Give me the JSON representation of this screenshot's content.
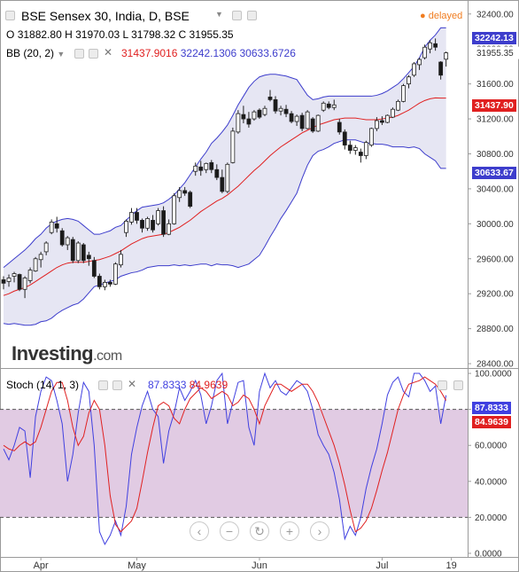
{
  "header": {
    "symbol_title": "BSE Sensex 30, India, D, BSE",
    "status": "delayed",
    "ohlc": {
      "o_label": "O",
      "o": "31882.80",
      "h_label": "H",
      "h": "31970.03",
      "l_label": "L",
      "l": "31798.32",
      "c_label": "C",
      "c": "31955.35"
    },
    "bb_label": "BB (20, 2)",
    "bb_values": {
      "mid": "31437.9016",
      "upper": "32242.1306",
      "lower": "30633.6726"
    },
    "stoch_label": "Stoch (14, 1, 3)",
    "stoch_values": {
      "k": "87.8333",
      "d": "84.9639"
    }
  },
  "watermark": {
    "brand": "Investing",
    "suffix": ".com"
  },
  "price_tags": {
    "upper": "32242.13",
    "mid": "31437.90",
    "lower": "30633.67",
    "close": "31955.35"
  },
  "stoch_tags": {
    "k": "87.8333",
    "d": "84.9639"
  },
  "colors": {
    "upper_band": "#3d3dcc",
    "mid_band": "#e02020",
    "lower_band": "#3d3dcc",
    "band_fill": "#e6e6f3",
    "up_candle": "#ffffff",
    "down_candle": "#1a1a1a",
    "stoch_k": "#4040e0",
    "stoch_d": "#e02020",
    "stoch_fill": "#e1cbe3"
  },
  "icons": [
    "eye-icon",
    "gear-icon",
    "close-icon",
    "chevron-down-icon",
    "arrow-up-icon"
  ],
  "nav_icons": [
    "scroll-left-icon",
    "zoom-out-icon",
    "reset-icon",
    "zoom-in-icon",
    "scroll-right-icon"
  ],
  "chart_data": [
    {
      "type": "candlestick",
      "title": "BSE Sensex 30, India, D, BSE",
      "xlabel": "",
      "ylabel": "",
      "x_ticks": [
        "Apr",
        "May",
        "Jun",
        "Jul",
        "19"
      ],
      "y_ticks": [
        "32400.00",
        "32000.00",
        "31600.00",
        "31200.00",
        "30800.00",
        "30400.00",
        "30000.00",
        "29600.00",
        "29200.00",
        "28800.00",
        "28400.00"
      ],
      "ylim": [
        28350,
        32560
      ],
      "grid": false,
      "ohlc": [
        [
          29360,
          29400,
          29250,
          29320
        ],
        [
          29340,
          29420,
          29280,
          29380
        ],
        [
          29400,
          29450,
          29330,
          29430
        ],
        [
          29420,
          29430,
          29230,
          29250
        ],
        [
          29250,
          29400,
          29150,
          29380
        ],
        [
          29350,
          29500,
          29320,
          29470
        ],
        [
          29460,
          29620,
          29450,
          29600
        ],
        [
          29590,
          29680,
          29500,
          29650
        ],
        [
          29680,
          29800,
          29640,
          29780
        ],
        [
          29900,
          30050,
          29880,
          30020
        ],
        [
          30000,
          30080,
          29900,
          29950
        ],
        [
          29920,
          29950,
          29740,
          29760
        ],
        [
          29760,
          29860,
          29700,
          29840
        ],
        [
          29820,
          29850,
          29550,
          29580
        ],
        [
          29580,
          29800,
          29550,
          29780
        ],
        [
          29760,
          29780,
          29550,
          29580
        ],
        [
          29640,
          29680,
          29520,
          29600
        ],
        [
          29580,
          29620,
          29380,
          29400
        ],
        [
          29400,
          29430,
          29250,
          29280
        ],
        [
          29280,
          29360,
          29240,
          29330
        ],
        [
          29330,
          29360,
          29280,
          29310
        ],
        [
          29310,
          29560,
          29300,
          29540
        ],
        [
          29530,
          29700,
          29500,
          29650
        ],
        [
          29900,
          30050,
          29850,
          30030
        ],
        [
          30020,
          30180,
          29990,
          30130
        ],
        [
          30130,
          30180,
          30000,
          30040
        ],
        [
          30040,
          30060,
          29900,
          29950
        ],
        [
          29950,
          30080,
          29920,
          30060
        ],
        [
          30040,
          30100,
          29900,
          29930
        ],
        [
          30000,
          30180,
          29980,
          30150
        ],
        [
          30150,
          30200,
          29850,
          29880
        ],
        [
          29880,
          30050,
          29870,
          30000
        ],
        [
          30000,
          30350,
          29990,
          30320
        ],
        [
          30300,
          30420,
          30250,
          30380
        ],
        [
          30380,
          30420,
          30320,
          30350
        ],
        [
          30360,
          30380,
          30180,
          30200
        ],
        [
          30600,
          30700,
          30550,
          30660
        ],
        [
          30650,
          30720,
          30550,
          30610
        ],
        [
          30620,
          30700,
          30580,
          30690
        ],
        [
          30700,
          30730,
          30580,
          30620
        ],
        [
          30620,
          30680,
          30500,
          30530
        ],
        [
          30530,
          30620,
          30350,
          30370
        ],
        [
          30370,
          30700,
          30350,
          30680
        ],
        [
          30700,
          31100,
          30690,
          31060
        ],
        [
          31050,
          31300,
          31030,
          31260
        ],
        [
          31250,
          31350,
          31150,
          31200
        ],
        [
          31200,
          31280,
          31100,
          31140
        ],
        [
          31200,
          31300,
          31180,
          31280
        ],
        [
          31300,
          31320,
          31200,
          31220
        ],
        [
          31250,
          31350,
          31230,
          31320
        ],
        [
          31450,
          31530,
          31400,
          31420
        ],
        [
          31420,
          31460,
          31260,
          31290
        ],
        [
          31290,
          31350,
          31240,
          31320
        ],
        [
          31310,
          31360,
          31220,
          31260
        ],
        [
          31260,
          31290,
          31150,
          31170
        ],
        [
          31170,
          31250,
          31120,
          31230
        ],
        [
          31240,
          31270,
          31060,
          31090
        ],
        [
          31090,
          31300,
          31080,
          31280
        ],
        [
          31200,
          31220,
          31040,
          31060
        ],
        [
          31060,
          31250,
          31050,
          31240
        ],
        [
          31300,
          31400,
          31280,
          31380
        ],
        [
          31370,
          31400,
          31310,
          31330
        ],
        [
          31330,
          31420,
          31300,
          31360
        ],
        [
          31160,
          31200,
          31020,
          31050
        ],
        [
          31050,
          31080,
          30850,
          30900
        ],
        [
          30900,
          30950,
          30800,
          30840
        ],
        [
          30840,
          30900,
          30790,
          30870
        ],
        [
          30820,
          30860,
          30700,
          30780
        ],
        [
          30780,
          30950,
          30740,
          30930
        ],
        [
          30900,
          31100,
          30880,
          31090
        ],
        [
          31090,
          31220,
          31060,
          31180
        ],
        [
          31180,
          31230,
          31130,
          31160
        ],
        [
          31160,
          31250,
          31150,
          31240
        ],
        [
          31220,
          31330,
          31210,
          31310
        ],
        [
          31300,
          31420,
          31290,
          31400
        ],
        [
          31400,
          31600,
          31390,
          31580
        ],
        [
          31600,
          31700,
          31550,
          31680
        ],
        [
          31700,
          31850,
          31680,
          31830
        ],
        [
          31820,
          31900,
          31760,
          31880
        ],
        [
          31900,
          32050,
          31880,
          32020
        ],
        [
          32000,
          32100,
          31950,
          32070
        ],
        [
          32060,
          32120,
          31980,
          32020
        ],
        [
          31850,
          31860,
          31650,
          31700
        ],
        [
          31882.8,
          31970.03,
          31798.32,
          31955.35
        ]
      ],
      "bollinger": {
        "mid": [
          29180,
          29200,
          29230,
          29250,
          29270,
          29300,
          29340,
          29380,
          29420,
          29460,
          29500,
          29530,
          29550,
          29560,
          29560,
          29560,
          29570,
          29580,
          29590,
          29610,
          29630,
          29660,
          29690,
          29730,
          29770,
          29800,
          29830,
          29850,
          29860,
          29870,
          29880,
          29900,
          29930,
          29960,
          30000,
          30040,
          30090,
          30140,
          30180,
          30220,
          30260,
          30290,
          30330,
          30380,
          30430,
          30490,
          30550,
          30610,
          30660,
          30720,
          30780,
          30830,
          30880,
          30920,
          30960,
          31000,
          31040,
          31070,
          31100,
          31130,
          31150,
          31170,
          31190,
          31200,
          31210,
          31210,
          31210,
          31200,
          31190,
          31190,
          31190,
          31200,
          31210,
          31220,
          31240,
          31270,
          31300,
          31340,
          31380,
          31410,
          31430,
          31440,
          31437.9,
          31437.9
        ],
        "upper": [
          29500,
          29550,
          29600,
          29650,
          29700,
          29760,
          29830,
          29880,
          29950,
          30000,
          30030,
          30050,
          30060,
          30050,
          30030,
          29980,
          29930,
          29880,
          29880,
          29900,
          29920,
          29960,
          29980,
          30040,
          30100,
          30150,
          30190,
          30200,
          30210,
          30220,
          30240,
          30280,
          30330,
          30400,
          30470,
          30560,
          30650,
          30740,
          30820,
          30920,
          30980,
          31050,
          31130,
          31240,
          31360,
          31460,
          31560,
          31630,
          31680,
          31700,
          31710,
          31710,
          31700,
          31690,
          31670,
          31650,
          31560,
          31470,
          31420,
          31430,
          31450,
          31460,
          31460,
          31460,
          31460,
          31460,
          31460,
          31460,
          31460,
          31460,
          31470,
          31490,
          31520,
          31560,
          31600,
          31660,
          31730,
          31800,
          31900,
          32020,
          32100,
          32160,
          32242.13,
          32242.13
        ],
        "lower": [
          28860,
          28850,
          28860,
          28850,
          28840,
          28840,
          28850,
          28880,
          28890,
          28920,
          28970,
          29010,
          29040,
          29070,
          29090,
          29140,
          29210,
          29280,
          29300,
          29320,
          29340,
          29360,
          29400,
          29420,
          29440,
          29450,
          29470,
          29500,
          29510,
          29520,
          29520,
          29520,
          29530,
          29520,
          29530,
          29520,
          29530,
          29540,
          29540,
          29520,
          29540,
          29530,
          29530,
          29520,
          29500,
          29520,
          29540,
          29590,
          29640,
          29740,
          29850,
          29950,
          30060,
          30150,
          30250,
          30350,
          30520,
          30670,
          30780,
          30830,
          30850,
          30880,
          30920,
          30940,
          30960,
          30960,
          30960,
          30940,
          30920,
          30920,
          30910,
          30910,
          30900,
          30880,
          30880,
          30880,
          30870,
          30880,
          30860,
          30800,
          30760,
          30720,
          30633.67,
          30633.67
        ]
      }
    },
    {
      "type": "line",
      "title": "Stoch (14, 1, 3)",
      "xlabel": "",
      "ylabel": "",
      "y_ticks": [
        "100.0000",
        "80.0000",
        "60.0000",
        "40.0000",
        "20.0000",
        "0.0000"
      ],
      "ylim": [
        -2,
        102
      ],
      "reference_lines": [
        80,
        20
      ],
      "series": [
        {
          "name": "",
          "values": [
            58,
            52,
            60,
            70,
            68,
            42,
            76,
            90,
            98,
            96,
            85,
            72,
            40,
            55,
            78,
            95,
            90,
            60,
            12,
            5,
            10,
            18,
            10,
            26,
            55,
            70,
            82,
            90,
            80,
            76,
            50,
            68,
            78,
            92,
            85,
            90,
            96,
            88,
            72,
            82,
            96,
            100,
            72,
            84,
            95,
            96,
            70,
            60,
            90,
            100,
            92,
            96,
            90,
            88,
            92,
            96,
            94,
            90,
            80,
            66,
            60,
            55,
            45,
            30,
            8,
            15,
            10,
            20,
            36,
            48,
            58,
            72,
            88,
            95,
            98,
            90,
            87,
            100,
            100,
            96,
            90,
            93,
            72,
            87.8333
          ]
        },
        {
          "name": "",
          "values": [
            60,
            58,
            57,
            60,
            62,
            60,
            62,
            70,
            80,
            90,
            95,
            95,
            85,
            70,
            60,
            65,
            78,
            85,
            80,
            60,
            32,
            16,
            12,
            15,
            18,
            25,
            40,
            56,
            70,
            82,
            84,
            82,
            75,
            72,
            80,
            86,
            89,
            92,
            90,
            86,
            88,
            90,
            88,
            82,
            84,
            88,
            86,
            80,
            72,
            82,
            88,
            94,
            94,
            92,
            90,
            92,
            94,
            94,
            90,
            84,
            76,
            68,
            60,
            50,
            38,
            24,
            12,
            14,
            18,
            25,
            35,
            46,
            56,
            68,
            80,
            88,
            94,
            95,
            96,
            98,
            96,
            94,
            90,
            84.9639
          ]
        }
      ]
    }
  ]
}
